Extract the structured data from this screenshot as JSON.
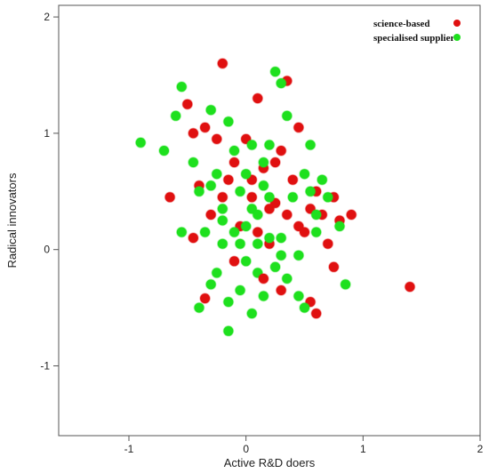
{
  "chart_data": {
    "type": "scatter",
    "xlabel": "Active R&D doers",
    "ylabel": "Radical innovators",
    "xlim": [
      -1.6,
      2.0
    ],
    "ylim": [
      -1.6,
      2.1
    ],
    "x_ticks": [
      -1,
      0,
      1,
      2
    ],
    "y_ticks": [
      -1,
      0,
      1,
      2
    ],
    "grid": false,
    "legend_position": "top-right",
    "series": [
      {
        "name": "science-based",
        "color": "#e01010",
        "points": [
          [
            -0.65,
            0.45
          ],
          [
            -0.5,
            1.25
          ],
          [
            -0.45,
            1.0
          ],
          [
            -0.4,
            0.55
          ],
          [
            -0.35,
            1.05
          ],
          [
            -0.3,
            0.3
          ],
          [
            -0.25,
            0.95
          ],
          [
            -0.2,
            1.6
          ],
          [
            -0.15,
            0.6
          ],
          [
            -0.1,
            0.75
          ],
          [
            -0.05,
            0.2
          ],
          [
            0.0,
            0.95
          ],
          [
            0.05,
            0.45
          ],
          [
            0.1,
            1.3
          ],
          [
            0.15,
            0.7
          ],
          [
            0.2,
            0.35
          ],
          [
            0.25,
            0.4
          ],
          [
            0.3,
            0.85
          ],
          [
            0.35,
            1.45
          ],
          [
            0.4,
            0.6
          ],
          [
            0.45,
            0.2
          ],
          [
            0.5,
            0.15
          ],
          [
            0.55,
            0.35
          ],
          [
            0.6,
            0.5
          ],
          [
            0.65,
            0.3
          ],
          [
            0.7,
            0.05
          ],
          [
            0.75,
            0.45
          ],
          [
            0.8,
            0.25
          ],
          [
            0.9,
            0.3
          ],
          [
            0.6,
            -0.55
          ],
          [
            0.55,
            -0.45
          ],
          [
            0.75,
            -0.15
          ],
          [
            1.4,
            -0.32
          ],
          [
            0.3,
            -0.35
          ],
          [
            0.2,
            0.05
          ],
          [
            -0.1,
            -0.1
          ],
          [
            -0.35,
            -0.42
          ],
          [
            0.15,
            -0.25
          ],
          [
            -0.2,
            0.45
          ],
          [
            0.05,
            0.6
          ],
          [
            0.25,
            0.75
          ],
          [
            0.35,
            0.3
          ],
          [
            0.45,
            1.05
          ],
          [
            -0.45,
            0.1
          ],
          [
            0.1,
            0.15
          ]
        ]
      },
      {
        "name": "specialised supplier",
        "color": "#1ee01e",
        "points": [
          [
            -0.9,
            0.92
          ],
          [
            -0.7,
            0.85
          ],
          [
            -0.6,
            1.15
          ],
          [
            -0.55,
            1.4
          ],
          [
            -0.45,
            0.75
          ],
          [
            -0.4,
            0.5
          ],
          [
            -0.35,
            0.15
          ],
          [
            -0.3,
            1.2
          ],
          [
            -0.25,
            0.65
          ],
          [
            -0.2,
            0.05
          ],
          [
            -0.15,
            1.1
          ],
          [
            -0.1,
            0.85
          ],
          [
            -0.05,
            0.5
          ],
          [
            0.0,
            -0.1
          ],
          [
            0.05,
            0.35
          ],
          [
            0.1,
            -0.2
          ],
          [
            0.15,
            0.55
          ],
          [
            0.2,
            0.9
          ],
          [
            0.25,
            1.53
          ],
          [
            0.3,
            1.43
          ],
          [
            0.35,
            1.15
          ],
          [
            0.4,
            0.45
          ],
          [
            0.45,
            -0.05
          ],
          [
            0.5,
            0.65
          ],
          [
            0.55,
            0.9
          ],
          [
            0.6,
            0.3
          ],
          [
            0.65,
            0.6
          ],
          [
            0.7,
            0.45
          ],
          [
            0.8,
            0.2
          ],
          [
            0.85,
            -0.3
          ],
          [
            -0.55,
            0.15
          ],
          [
            -0.4,
            -0.5
          ],
          [
            -0.3,
            -0.3
          ],
          [
            -0.25,
            -0.2
          ],
          [
            -0.2,
            0.25
          ],
          [
            -0.15,
            -0.45
          ],
          [
            -0.1,
            0.15
          ],
          [
            -0.05,
            -0.35
          ],
          [
            0.0,
            0.2
          ],
          [
            0.05,
            -0.55
          ],
          [
            0.1,
            0.05
          ],
          [
            0.15,
            -0.4
          ],
          [
            0.2,
            0.45
          ],
          [
            0.25,
            -0.15
          ],
          [
            0.3,
            0.1
          ],
          [
            0.35,
            -0.25
          ],
          [
            0.45,
            -0.4
          ],
          [
            0.5,
            -0.5
          ],
          [
            0.55,
            0.5
          ],
          [
            0.6,
            0.15
          ],
          [
            -0.15,
            -0.7
          ],
          [
            0.15,
            0.75
          ],
          [
            -0.3,
            0.55
          ],
          [
            0.0,
            0.65
          ],
          [
            0.3,
            -0.05
          ],
          [
            -0.05,
            0.05
          ],
          [
            0.05,
            0.9
          ],
          [
            -0.2,
            0.35
          ],
          [
            0.2,
            0.1
          ],
          [
            0.1,
            0.3
          ]
        ]
      }
    ]
  }
}
